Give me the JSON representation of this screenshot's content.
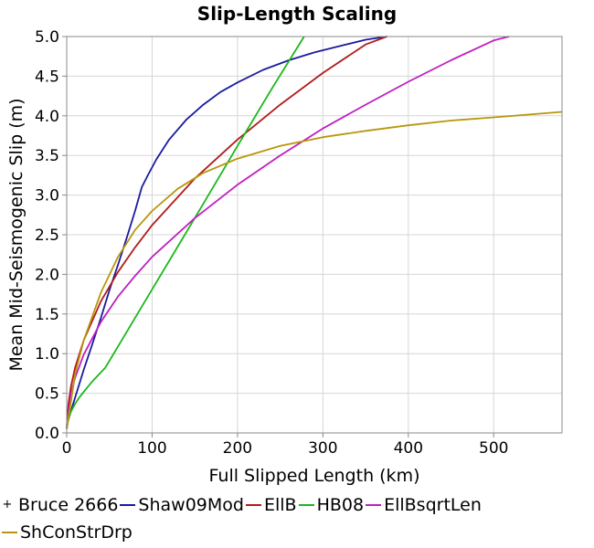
{
  "chart_data": {
    "type": "line",
    "title": "Slip-Length Scaling",
    "xlabel": "Full Slipped Length (km)",
    "ylabel": "Mean Mid-Seismogenic Slip (m)",
    "xlim": [
      0,
      580
    ],
    "ylim": [
      0,
      5
    ],
    "xticks": [
      0,
      100,
      200,
      300,
      400,
      500
    ],
    "xtick_labels": [
      "0",
      "100",
      "200",
      "300",
      "400",
      "500"
    ],
    "yticks": [
      0,
      0.5,
      1,
      1.5,
      2,
      2.5,
      3,
      3.5,
      4,
      4.5,
      5
    ],
    "ytick_labels": [
      "0.0",
      "0.5",
      "1.0",
      "1.5",
      "2.0",
      "2.5",
      "3.0",
      "3.5",
      "4.0",
      "4.5",
      "5.0"
    ],
    "grid": true,
    "legend_position": "bottom",
    "series": [
      {
        "name": "Bruce 2666",
        "color": "#000000",
        "style": "marker",
        "x": [],
        "y": []
      },
      {
        "name": "Shaw09Mod",
        "color": "#1a1aa0",
        "style": "line",
        "x": [
          0,
          10,
          20,
          30,
          40,
          50,
          60,
          70,
          80,
          88,
          95,
          105,
          120,
          140,
          160,
          180,
          200,
          230,
          260,
          290,
          320,
          350,
          375
        ],
        "y": [
          0.1,
          0.45,
          0.8,
          1.12,
          1.45,
          1.8,
          2.12,
          2.45,
          2.8,
          3.1,
          3.25,
          3.45,
          3.7,
          3.95,
          4.14,
          4.3,
          4.42,
          4.58,
          4.7,
          4.8,
          4.88,
          4.96,
          5.0
        ]
      },
      {
        "name": "EllB",
        "color": "#b01c1c",
        "style": "line",
        "x": [
          0,
          2,
          5,
          10,
          20,
          40,
          60,
          80,
          100,
          150,
          200,
          250,
          300,
          350,
          375
        ],
        "y": [
          0.06,
          0.37,
          0.59,
          0.83,
          1.17,
          1.66,
          2.03,
          2.34,
          2.62,
          3.21,
          3.7,
          4.14,
          4.54,
          4.9,
          5.0
        ]
      },
      {
        "name": "HB08",
        "color": "#1ab81a",
        "style": "line",
        "x": [
          0,
          2,
          5,
          10,
          15,
          20,
          30,
          45,
          60,
          80,
          100,
          130,
          160,
          200,
          240,
          278
        ],
        "y": [
          0.05,
          0.18,
          0.27,
          0.37,
          0.45,
          0.52,
          0.65,
          0.82,
          1.09,
          1.45,
          1.81,
          2.35,
          2.89,
          3.62,
          4.34,
          5.0
        ]
      },
      {
        "name": "EllBsqrtLen",
        "color": "#c01ec0",
        "style": "line",
        "x": [
          0,
          5,
          10,
          20,
          40,
          60,
          80,
          100,
          150,
          200,
          250,
          300,
          350,
          400,
          450,
          500,
          518
        ],
        "y": [
          0.06,
          0.5,
          0.7,
          0.99,
          1.4,
          1.72,
          1.98,
          2.22,
          2.71,
          3.13,
          3.5,
          3.84,
          4.14,
          4.43,
          4.7,
          4.95,
          5.0
        ]
      },
      {
        "name": "ShConStrDrp",
        "color": "#b8960c",
        "style": "line",
        "x": [
          0,
          5,
          10,
          20,
          40,
          60,
          80,
          100,
          130,
          160,
          200,
          250,
          300,
          350,
          400,
          450,
          500,
          580
        ],
        "y": [
          0.05,
          0.4,
          0.75,
          1.17,
          1.77,
          2.22,
          2.56,
          2.8,
          3.08,
          3.28,
          3.46,
          3.62,
          3.73,
          3.81,
          3.88,
          3.94,
          3.98,
          4.05
        ]
      }
    ]
  }
}
